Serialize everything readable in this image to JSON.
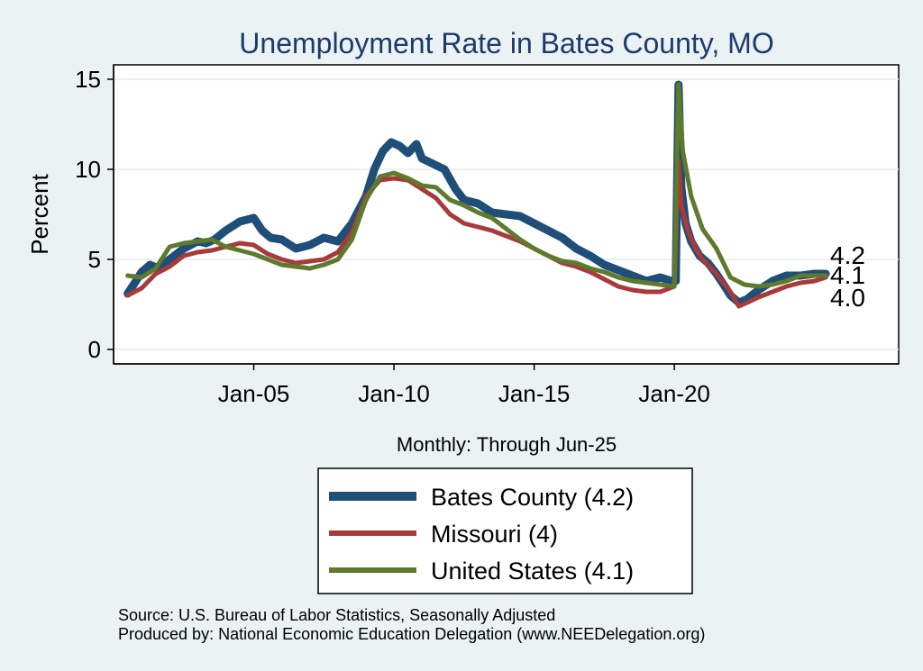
{
  "chart_data": {
    "type": "line",
    "title": "Unemployment Rate in Bates  County, MO",
    "xlabel": "Monthly: Through Jun-25",
    "ylabel": "Percent",
    "xlim": [
      2000.0,
      2028.0
    ],
    "ylim": [
      -0.8,
      15.8
    ],
    "grid": true,
    "x_ticks": [
      {
        "x": 2005.0,
        "label": "Jan-05"
      },
      {
        "x": 2010.0,
        "label": "Jan-10"
      },
      {
        "x": 2015.0,
        "label": "Jan-15"
      },
      {
        "x": 2020.0,
        "label": "Jan-20"
      }
    ],
    "y_ticks": [
      {
        "y": 0,
        "label": "0"
      },
      {
        "y": 5,
        "label": "5"
      },
      {
        "y": 10,
        "label": "10"
      },
      {
        "y": 15,
        "label": "15"
      }
    ],
    "series": [
      {
        "name": "Bates  County",
        "legend": "Bates  County (4.2)",
        "color": "#1f4e79",
        "width": 9,
        "end_label": "4.2",
        "x": [
          2000.5,
          2000.8,
          2001.0,
          2001.3,
          2001.6,
          2002.0,
          2002.5,
          2003.0,
          2003.3,
          2003.6,
          2004.0,
          2004.5,
          2005.0,
          2005.3,
          2005.6,
          2006.0,
          2006.5,
          2007.0,
          2007.5,
          2008.0,
          2008.5,
          2009.0,
          2009.3,
          2009.6,
          2009.9,
          2010.2,
          2010.5,
          2010.8,
          2011.0,
          2011.4,
          2011.8,
          2012.2,
          2012.5,
          2013.0,
          2013.5,
          2014.0,
          2014.5,
          2015.0,
          2015.5,
          2016.0,
          2016.5,
          2017.0,
          2017.5,
          2018.0,
          2018.5,
          2019.0,
          2019.5,
          2019.9,
          2020.05,
          2020.15,
          2020.25,
          2020.4,
          2020.6,
          2020.9,
          2021.2,
          2021.5,
          2021.8,
          2022.0,
          2022.3,
          2022.6,
          2023.0,
          2023.5,
          2024.0,
          2024.5,
          2025.0,
          2025.4
        ],
        "y": [
          3.1,
          3.8,
          4.3,
          4.7,
          4.5,
          5.0,
          5.6,
          6.0,
          5.9,
          6.1,
          6.6,
          7.1,
          7.3,
          6.6,
          6.2,
          6.1,
          5.6,
          5.8,
          6.2,
          6.0,
          7.0,
          8.5,
          10.0,
          11.0,
          11.5,
          11.3,
          10.9,
          11.4,
          10.6,
          10.3,
          10.0,
          8.9,
          8.3,
          8.1,
          7.6,
          7.5,
          7.4,
          7.0,
          6.6,
          6.2,
          5.6,
          5.2,
          4.7,
          4.4,
          4.1,
          3.8,
          4.0,
          3.8,
          3.8,
          14.7,
          9.0,
          7.0,
          6.0,
          5.2,
          4.8,
          4.2,
          3.5,
          3.0,
          2.6,
          2.8,
          3.3,
          3.8,
          4.1,
          4.1,
          4.2,
          4.2
        ]
      },
      {
        "name": "Missouri",
        "legend": "Missouri (4)",
        "color": "#a83a3a",
        "width": 5,
        "end_label": "4.0",
        "x": [
          2000.5,
          2001.0,
          2001.5,
          2002.0,
          2002.5,
          2003.0,
          2003.5,
          2004.0,
          2004.5,
          2005.0,
          2005.5,
          2006.0,
          2006.5,
          2007.0,
          2007.5,
          2008.0,
          2008.5,
          2009.0,
          2009.5,
          2010.0,
          2010.5,
          2011.0,
          2011.5,
          2012.0,
          2012.5,
          2013.0,
          2013.5,
          2014.0,
          2014.5,
          2015.0,
          2015.5,
          2016.0,
          2016.5,
          2017.0,
          2017.5,
          2018.0,
          2018.5,
          2019.0,
          2019.5,
          2020.0,
          2020.15,
          2020.25,
          2020.5,
          2020.8,
          2021.0,
          2021.5,
          2022.0,
          2022.3,
          2022.6,
          2023.0,
          2023.5,
          2024.0,
          2024.5,
          2025.0,
          2025.4
        ],
        "y": [
          3.0,
          3.4,
          4.2,
          4.6,
          5.2,
          5.4,
          5.5,
          5.7,
          5.9,
          5.8,
          5.3,
          5.0,
          4.8,
          4.9,
          5.0,
          5.4,
          6.5,
          8.5,
          9.4,
          9.5,
          9.4,
          8.9,
          8.4,
          7.5,
          7.0,
          6.8,
          6.6,
          6.3,
          6.0,
          5.6,
          5.2,
          4.8,
          4.6,
          4.3,
          3.9,
          3.5,
          3.3,
          3.2,
          3.2,
          3.5,
          10.5,
          8.0,
          6.5,
          5.5,
          5.0,
          4.2,
          3.2,
          2.4,
          2.6,
          2.9,
          3.2,
          3.5,
          3.7,
          3.8,
          4.0
        ]
      },
      {
        "name": "United States",
        "legend": "United States (4.1)",
        "color": "#5e7a2c",
        "width": 5,
        "end_label": "4.1",
        "x": [
          2000.5,
          2001.0,
          2001.5,
          2002.0,
          2002.5,
          2003.0,
          2003.5,
          2004.0,
          2004.5,
          2005.0,
          2005.5,
          2006.0,
          2006.5,
          2007.0,
          2007.5,
          2008.0,
          2008.5,
          2009.0,
          2009.5,
          2010.0,
          2010.5,
          2011.0,
          2011.5,
          2012.0,
          2012.5,
          2013.0,
          2013.5,
          2014.0,
          2014.5,
          2015.0,
          2015.5,
          2016.0,
          2016.5,
          2017.0,
          2017.5,
          2018.0,
          2018.5,
          2019.0,
          2019.5,
          2020.0,
          2020.15,
          2020.3,
          2020.6,
          2021.0,
          2021.5,
          2022.0,
          2022.5,
          2023.0,
          2023.5,
          2024.0,
          2024.5,
          2025.0,
          2025.4
        ],
        "y": [
          4.1,
          4.0,
          4.5,
          5.7,
          5.9,
          6.0,
          6.1,
          5.7,
          5.5,
          5.3,
          5.0,
          4.7,
          4.6,
          4.5,
          4.7,
          5.0,
          6.1,
          8.3,
          9.6,
          9.8,
          9.5,
          9.1,
          9.0,
          8.3,
          8.0,
          7.6,
          7.3,
          6.7,
          6.1,
          5.6,
          5.2,
          4.9,
          4.8,
          4.5,
          4.3,
          4.0,
          3.8,
          3.7,
          3.6,
          3.5,
          14.7,
          11.0,
          8.5,
          6.7,
          5.6,
          4.0,
          3.6,
          3.5,
          3.6,
          3.8,
          4.1,
          4.1,
          4.1
        ]
      }
    ]
  },
  "legend": {
    "items": [
      {
        "label": "Bates  County (4.2)",
        "color": "#1f4e79"
      },
      {
        "label": "Missouri (4)",
        "color": "#a83a3a"
      },
      {
        "label": "United States (4.1)",
        "color": "#5e7a2c"
      }
    ]
  },
  "source": {
    "line1": "Source: U.S. Bureau of Labor Statistics, Seasonally Adjusted",
    "line2": "Produced by: National Economic Education Delegation (www.NEEDelegation.org)"
  }
}
